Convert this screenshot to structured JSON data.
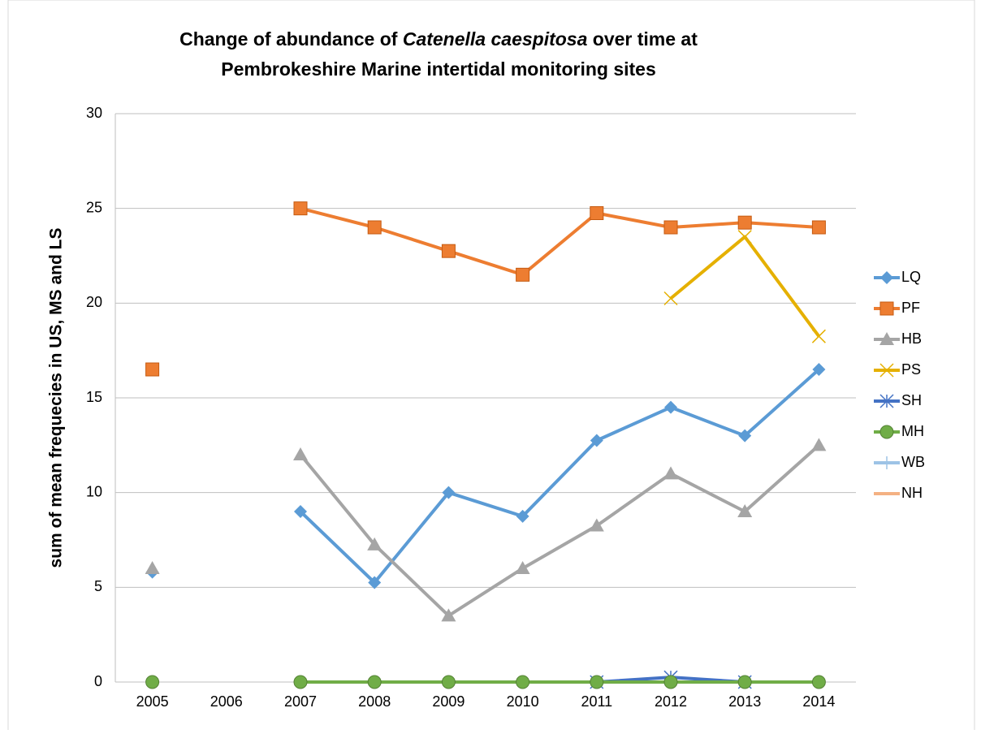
{
  "chart_data": {
    "type": "line",
    "title": [
      "Change of abundance of ",
      "Catenella caespitosa",
      " over time at",
      "Pembrokeshire Marine intertidal monitoring sites"
    ],
    "ylabel": "sum of mean frequecies in US, MS and LS",
    "categories": [
      "2005",
      "2006",
      "2007",
      "2008",
      "2009",
      "2010",
      "2011",
      "2012",
      "2013",
      "2014"
    ],
    "ylim": [
      0,
      30
    ],
    "yticks": [
      0,
      5,
      10,
      15,
      20,
      25,
      30
    ],
    "grid": true,
    "legend": "right",
    "series": [
      {
        "name": "LQ",
        "color": "#5b9bd5",
        "marker": "diamond",
        "values": [
          5.8,
          null,
          9,
          5.25,
          10,
          8.75,
          12.75,
          14.5,
          13,
          16.5
        ]
      },
      {
        "name": "PF",
        "color": "#ed7d31",
        "marker": "square",
        "values": [
          16.5,
          null,
          25,
          24,
          22.75,
          21.5,
          24.75,
          24,
          24.25,
          24
        ]
      },
      {
        "name": "HB",
        "color": "#a5a5a5",
        "marker": "triangle",
        "values": [
          6,
          null,
          12,
          7.25,
          3.5,
          6,
          8.25,
          11,
          9,
          12.5
        ]
      },
      {
        "name": "PS",
        "color": "#e5b000",
        "marker": "x",
        "values": [
          null,
          null,
          null,
          null,
          null,
          null,
          null,
          20.25,
          23.5,
          18.25
        ]
      },
      {
        "name": "SH",
        "color": "#4472c4",
        "marker": "star",
        "values": [
          null,
          null,
          null,
          null,
          null,
          null,
          0,
          0.25,
          0,
          null
        ]
      },
      {
        "name": "NH",
        "color": "#f4b183",
        "marker": "none",
        "values": [
          null,
          null,
          0,
          0,
          0,
          0,
          0,
          0,
          0,
          0
        ]
      },
      {
        "name": "WB",
        "color": "#9dc3e6",
        "marker": "plus",
        "values": [
          null,
          null,
          0,
          0,
          0,
          0,
          0,
          0,
          0,
          0
        ]
      },
      {
        "name": "MH",
        "color": "#70ad47",
        "marker": "circle",
        "values": [
          0,
          null,
          0,
          0,
          0,
          0,
          0,
          0,
          0,
          0
        ]
      }
    ]
  }
}
